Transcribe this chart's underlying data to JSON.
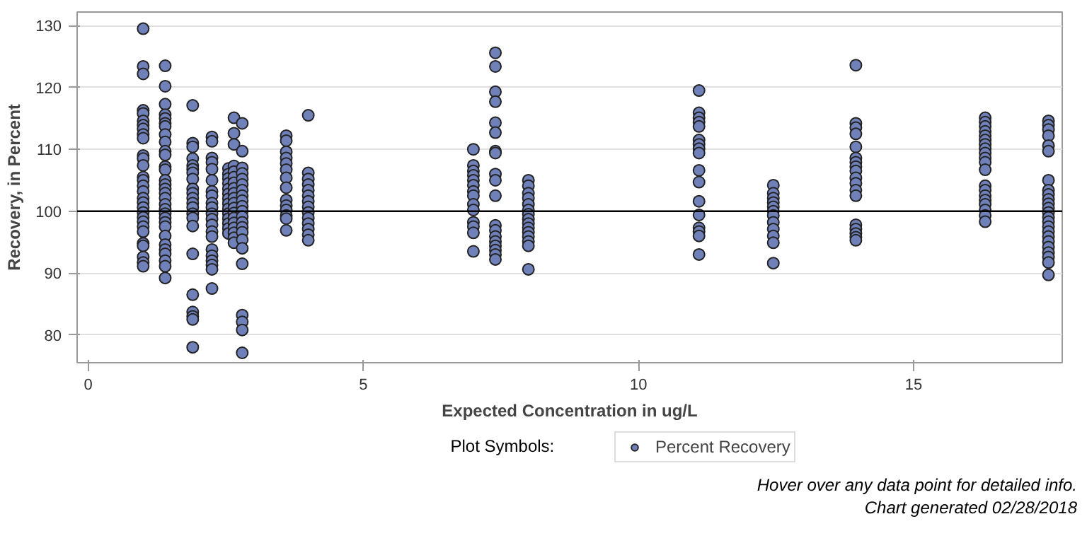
{
  "chart_data": {
    "type": "scatter",
    "xlabel": "Expected Concentration in ug/L",
    "ylabel": "Recovery, in Percent",
    "legend_title": "Plot Symbols:",
    "xlim": [
      -0.2,
      17.7
    ],
    "ylim": [
      75.5,
      132.2
    ],
    "xticks": [
      0,
      5,
      10,
      15
    ],
    "yticks": [
      80,
      90,
      100,
      110,
      120,
      130
    ],
    "grid": "y",
    "legend": "bottom",
    "marker": "circle",
    "ref_lines": [
      {
        "axis": "y",
        "value": 100,
        "color": "#000000"
      }
    ],
    "annotations": [
      "Hover over any data point for detailed info.",
      "Chart generated 02/28/2018"
    ],
    "series": [
      {
        "name": "Percent Recovery",
        "color": "#7080b8",
        "x": [
          1,
          1,
          1,
          1,
          1,
          1,
          1,
          1,
          1,
          1,
          1,
          1,
          1,
          1,
          1,
          1,
          1,
          1,
          1,
          1,
          1,
          1,
          1,
          1,
          1,
          1,
          1,
          1,
          1,
          1,
          1.4,
          1.4,
          1.4,
          1.4,
          1.4,
          1.4,
          1.4,
          1.4,
          1.4,
          1.4,
          1.4,
          1.4,
          1.4,
          1.4,
          1.4,
          1.4,
          1.4,
          1.4,
          1.4,
          1.4,
          1.4,
          1.4,
          1.4,
          1.4,
          1.4,
          1.4,
          1.4,
          1.4,
          1.4,
          1.4,
          1.4,
          1.9,
          1.9,
          1.9,
          1.9,
          1.9,
          1.9,
          1.9,
          1.9,
          1.9,
          1.9,
          1.9,
          1.9,
          1.9,
          1.9,
          1.9,
          1.9,
          1.9,
          1.9,
          1.9,
          1.9,
          1.9,
          1.9,
          2.25,
          2.25,
          2.25,
          2.25,
          2.25,
          2.25,
          2.25,
          2.25,
          2.25,
          2.25,
          2.25,
          2.25,
          2.25,
          2.25,
          2.25,
          2.25,
          2.25,
          2.25,
          2.25,
          2.25,
          2.25,
          2.55,
          2.55,
          2.55,
          2.55,
          2.55,
          2.55,
          2.55,
          2.55,
          2.55,
          2.55,
          2.55,
          2.55,
          2.55,
          2.55,
          2.65,
          2.65,
          2.65,
          2.65,
          2.65,
          2.65,
          2.65,
          2.65,
          2.65,
          2.65,
          2.65,
          2.65,
          2.65,
          2.65,
          2.65,
          2.65,
          2.65,
          2.65,
          2.65,
          2.8,
          2.8,
          2.8,
          2.8,
          2.8,
          2.8,
          2.8,
          2.8,
          2.8,
          2.8,
          2.8,
          2.8,
          2.8,
          2.8,
          2.8,
          2.8,
          2.8,
          2.8,
          2.8,
          2.8,
          2.8,
          2.8,
          3.6,
          3.6,
          3.6,
          3.6,
          3.6,
          3.6,
          3.6,
          3.6,
          3.6,
          3.6,
          3.6,
          3.6,
          3.6,
          3.6,
          4,
          4,
          4,
          4,
          4,
          4,
          4,
          4,
          4,
          4,
          4,
          4,
          4,
          4,
          7,
          7,
          7,
          7,
          7,
          7,
          7,
          7,
          7,
          7,
          7,
          7,
          7,
          7,
          7.4,
          7.4,
          7.4,
          7.4,
          7.4,
          7.4,
          7.4,
          7.4,
          7.4,
          7.4,
          7.4,
          7.4,
          7.4,
          7.4,
          7.4,
          7.4,
          7.4,
          7.4,
          7.4,
          8,
          8,
          8,
          8,
          8,
          8,
          8,
          8,
          8,
          8,
          8,
          8,
          8,
          8,
          8,
          11.1,
          11.1,
          11.1,
          11.1,
          11.1,
          11.1,
          11.1,
          11.1,
          11.1,
          11.1,
          11.1,
          11.1,
          11.1,
          11.1,
          11.1,
          11.1,
          11.1,
          12.45,
          12.45,
          12.45,
          12.45,
          12.45,
          12.45,
          12.45,
          12.45,
          12.45,
          12.45,
          12.45,
          12.45,
          13.95,
          13.95,
          13.95,
          13.95,
          13.95,
          13.95,
          13.95,
          13.95,
          13.95,
          13.95,
          13.95,
          13.95,
          13.95,
          13.95,
          13.95,
          13.95,
          13.95,
          13.95,
          16.3,
          16.3,
          16.3,
          16.3,
          16.3,
          16.3,
          16.3,
          16.3,
          16.3,
          16.3,
          16.3,
          16.3,
          16.3,
          16.3,
          16.3,
          16.3,
          16.3,
          16.3,
          16.3,
          16.3,
          17.45,
          17.45,
          17.45,
          17.45,
          17.45,
          17.45,
          17.45,
          17.45,
          17.45,
          17.45,
          17.45,
          17.45,
          17.45,
          17.45,
          17.45,
          17.45,
          17.45,
          17.45,
          17.45,
          17.45,
          17.45,
          17.45,
          17.45,
          17.45
        ],
        "values": [
          129.5,
          123.4,
          122.2,
          116.3,
          115.8,
          114.6,
          113.9,
          113.3,
          112.4,
          111.8,
          109.0,
          108.5,
          107.4,
          105.5,
          105.0,
          104.1,
          103.2,
          102.1,
          101.4,
          100.6,
          99.8,
          99.0,
          98.3,
          97.5,
          96.7,
          94.8,
          94.4,
          92.6,
          91.7,
          91.1,
          123.5,
          120.2,
          117.3,
          115.6,
          115.0,
          114.2,
          113.7,
          112.4,
          111.2,
          109.7,
          109.1,
          107.2,
          106.7,
          105.0,
          104.3,
          103.6,
          102.9,
          102.1,
          101.1,
          100.3,
          99.6,
          98.9,
          98.2,
          97.5,
          96.0,
          94.6,
          93.8,
          93.1,
          92.0,
          91.1,
          89.2,
          117.1,
          111.0,
          110.4,
          108.5,
          107.4,
          106.8,
          106.2,
          105.2,
          103.6,
          102.9,
          102.1,
          101.3,
          100.6,
          99.6,
          98.9,
          97.6,
          93.1,
          86.5,
          83.7,
          83.0,
          82.5,
          78.0,
          112.0,
          111.3,
          108.6,
          107.9,
          106.8,
          105.0,
          103.2,
          102.5,
          101.3,
          100.6,
          99.6,
          98.7,
          97.8,
          96.7,
          95.9,
          93.8,
          92.8,
          92.0,
          91.3,
          90.6,
          87.5,
          106.9,
          106.0,
          105.3,
          104.5,
          103.6,
          102.8,
          102.0,
          101.2,
          100.4,
          99.6,
          98.8,
          98.0,
          97.2,
          96.4,
          115.1,
          112.6,
          110.8,
          107.3,
          106.4,
          105.5,
          104.6,
          103.7,
          102.9,
          102.1,
          101.3,
          100.5,
          99.7,
          98.9,
          98.1,
          97.3,
          96.5,
          95.7,
          94.9,
          114.2,
          109.7,
          107.0,
          106.1,
          105.2,
          104.3,
          103.4,
          102.5,
          101.7,
          100.8,
          100.0,
          99.1,
          98.2,
          97.4,
          96.6,
          95.4,
          94.0,
          91.5,
          83.2,
          82.1,
          80.8,
          77.1,
          112.2,
          111.4,
          109.6,
          108.6,
          107.7,
          106.7,
          105.4,
          103.8,
          101.8,
          100.9,
          100.2,
          99.3,
          98.8,
          96.9,
          115.5,
          106.2,
          105.2,
          104.3,
          103.4,
          102.5,
          101.6,
          100.7,
          99.8,
          98.9,
          98.0,
          97.1,
          96.2,
          95.3,
          110.0,
          107.4,
          106.5,
          105.8,
          105.0,
          104.2,
          103.2,
          102.5,
          101.1,
          100.2,
          98.2,
          97.5,
          96.5,
          93.5,
          125.6,
          123.4,
          119.3,
          117.7,
          114.3,
          112.7,
          109.7,
          109.4,
          106.0,
          105.0,
          102.5,
          97.7,
          96.9,
          95.9,
          95.1,
          94.4,
          93.7,
          93.0,
          92.2,
          105.0,
          104.1,
          102.9,
          102.1,
          101.1,
          100.2,
          99.5,
          98.7,
          98.0,
          97.3,
          96.6,
          95.9,
          95.1,
          94.4,
          90.6,
          119.5,
          115.9,
          115.1,
          114.4,
          113.7,
          111.5,
          110.8,
          110.1,
          109.4,
          106.6,
          104.7,
          101.6,
          99.4,
          97.3,
          96.7,
          96.0,
          93.0,
          104.2,
          102.9,
          102.1,
          101.4,
          100.7,
          100.0,
          99.3,
          98.2,
          97.1,
          96.0,
          94.9,
          91.6,
          123.6,
          114.2,
          113.5,
          112.5,
          110.4,
          108.6,
          107.9,
          107.2,
          106.5,
          105.4,
          104.5,
          103.4,
          102.5,
          97.8,
          97.1,
          96.4,
          95.8,
          95.3,
          115.1,
          114.4,
          113.7,
          112.9,
          112.2,
          111.5,
          110.8,
          110.1,
          109.4,
          108.6,
          107.9,
          106.7,
          104.1,
          103.4,
          102.5,
          101.8,
          101.1,
          100.2,
          99.3,
          98.3,
          114.6,
          113.9,
          113.2,
          112.2,
          110.6,
          109.7,
          105.0,
          103.4,
          102.7,
          101.9,
          101.2,
          100.5,
          99.8,
          99.0,
          98.3,
          97.5,
          96.7,
          95.9,
          95.1,
          94.2,
          93.3,
          92.6,
          91.7,
          89.7
        ]
      }
    ]
  }
}
